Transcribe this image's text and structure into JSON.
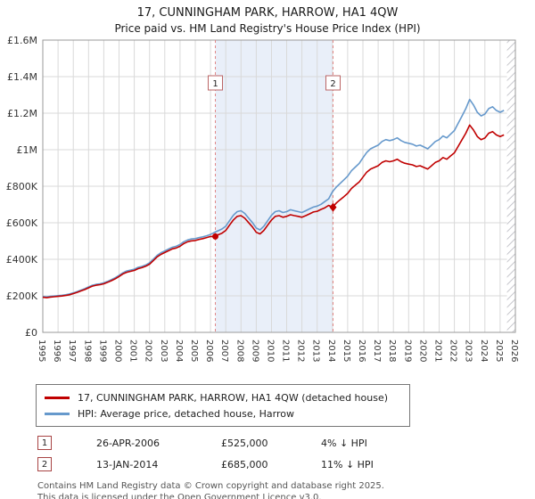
{
  "title": "17, CUNNINGHAM PARK, HARROW, HA1 4QW",
  "subtitle": "Price paid vs. HM Land Registry's House Price Index (HPI)",
  "colors": {
    "property_line": "#c00000",
    "hpi_line": "#6699cc",
    "shade": "#e9eff9",
    "grid": "#d9d9d9",
    "plot_border": "#999999",
    "dashed_sale_line": "#e08888",
    "sale_box_border": "#bb6666",
    "hatch": "#b9b9c0"
  },
  "chart_data": {
    "type": "line",
    "title": "17, CUNNINGHAM PARK, HARROW, HA1 4QW — Price paid vs. HM Land Registry's House Price Index (HPI)",
    "y_unit": "GBP thousands",
    "xlim": [
      1995,
      2026
    ],
    "ylim": [
      0,
      1600
    ],
    "x_start": 1995.0,
    "x_step": 0.25,
    "grid": true,
    "legend_position": "bottom",
    "years": [
      1995,
      1996,
      1997,
      1998,
      1999,
      2000,
      2001,
      2002,
      2003,
      2004,
      2005,
      2006,
      2007,
      2008,
      2009,
      2010,
      2011,
      2012,
      2013,
      2014,
      2015,
      2016,
      2017,
      2018,
      2019,
      2020,
      2021,
      2022,
      2023,
      2024,
      2025,
      2026
    ],
    "yticks": [
      {
        "value": 0,
        "label": "£0"
      },
      {
        "value": 200,
        "label": "£200K"
      },
      {
        "value": 400,
        "label": "£400K"
      },
      {
        "value": 600,
        "label": "£600K"
      },
      {
        "value": 800,
        "label": "£800K"
      },
      {
        "value": 1000,
        "label": "£1M"
      },
      {
        "value": 1200,
        "label": "£1.2M"
      },
      {
        "value": 1400,
        "label": "£1.4M"
      },
      {
        "value": 1600,
        "label": "£1.6M"
      }
    ],
    "series": [
      {
        "name": "17, CUNNINGHAM PARK, HARROW, HA1 4QW (detached house)",
        "color": "#c00000",
        "values": [
          192,
          190,
          193,
          195,
          197,
          199,
          202,
          206,
          212,
          219,
          227,
          234,
          244,
          253,
          258,
          261,
          266,
          274,
          283,
          293,
          306,
          320,
          329,
          334,
          339,
          349,
          354,
          362,
          373,
          393,
          413,
          427,
          437,
          447,
          457,
          462,
          471,
          486,
          496,
          501,
          503,
          509,
          513,
          519,
          525,
          525,
          534,
          543,
          558,
          587,
          615,
          635,
          639,
          625,
          601,
          577,
          548,
          539,
          558,
          587,
          615,
          635,
          639,
          630,
          635,
          644,
          639,
          635,
          630,
          639,
          649,
          659,
          663,
          673,
          682,
          695,
          685,
          708,
          726,
          743,
          761,
          788,
          806,
          823,
          850,
          877,
          894,
          903,
          912,
          930,
          939,
          934,
          939,
          948,
          934,
          926,
          921,
          917,
          908,
          912,
          903,
          894,
          912,
          930,
          939,
          957,
          948,
          966,
          983,
          1019,
          1055,
          1090,
          1135,
          1108,
          1072,
          1055,
          1064,
          1090,
          1099,
          1081,
          1072,
          1081
        ]
      },
      {
        "name": "HPI: Average price, detached house, Harrow",
        "color": "#6699cc",
        "values": [
          196,
          194,
          197,
          199,
          201,
          203,
          206,
          210,
          216,
          223,
          231,
          239,
          249,
          258,
          263,
          266,
          271,
          279,
          289,
          299,
          312,
          326,
          336,
          341,
          346,
          356,
          361,
          369,
          381,
          401,
          421,
          436,
          446,
          456,
          466,
          471,
          481,
          496,
          506,
          511,
          513,
          519,
          523,
          529,
          536,
          547,
          556,
          566,
          581,
          611,
          641,
          661,
          666,
          651,
          626,
          601,
          571,
          561,
          581,
          611,
          641,
          661,
          666,
          656,
          661,
          671,
          666,
          661,
          656,
          666,
          676,
          686,
          691,
          701,
          716,
          731,
          770,
          795,
          815,
          835,
          855,
          885,
          905,
          925,
          955,
          985,
          1005,
          1015,
          1025,
          1045,
          1055,
          1050,
          1055,
          1065,
          1050,
          1040,
          1035,
          1030,
          1020,
          1025,
          1015,
          1005,
          1025,
          1045,
          1055,
          1075,
          1065,
          1085,
          1105,
          1145,
          1185,
          1225,
          1275,
          1245,
          1205,
          1185,
          1195,
          1225,
          1235,
          1215,
          1205,
          1215
        ]
      }
    ],
    "sales": [
      {
        "num": "1",
        "x": 2006.32,
        "price_k": 525,
        "marker": "circle"
      },
      {
        "num": "2",
        "x": 2014.04,
        "price_k": 685,
        "marker": "diamond"
      }
    ],
    "shaded_region": [
      2006.32,
      2014.04
    ],
    "hatched_region": [
      2025.45,
      2026
    ]
  },
  "annotations": [
    {
      "num": "1",
      "date": "26-APR-2006",
      "price": "£525,000",
      "vs_hpi": "4% ↓ HPI"
    },
    {
      "num": "2",
      "date": "13-JAN-2014",
      "price": "£685,000",
      "vs_hpi": "11% ↓ HPI"
    }
  ],
  "footer": {
    "line1": "Contains HM Land Registry data © Crown copyright and database right 2025.",
    "line2": "This data is licensed under the Open Government Licence v3.0."
  }
}
